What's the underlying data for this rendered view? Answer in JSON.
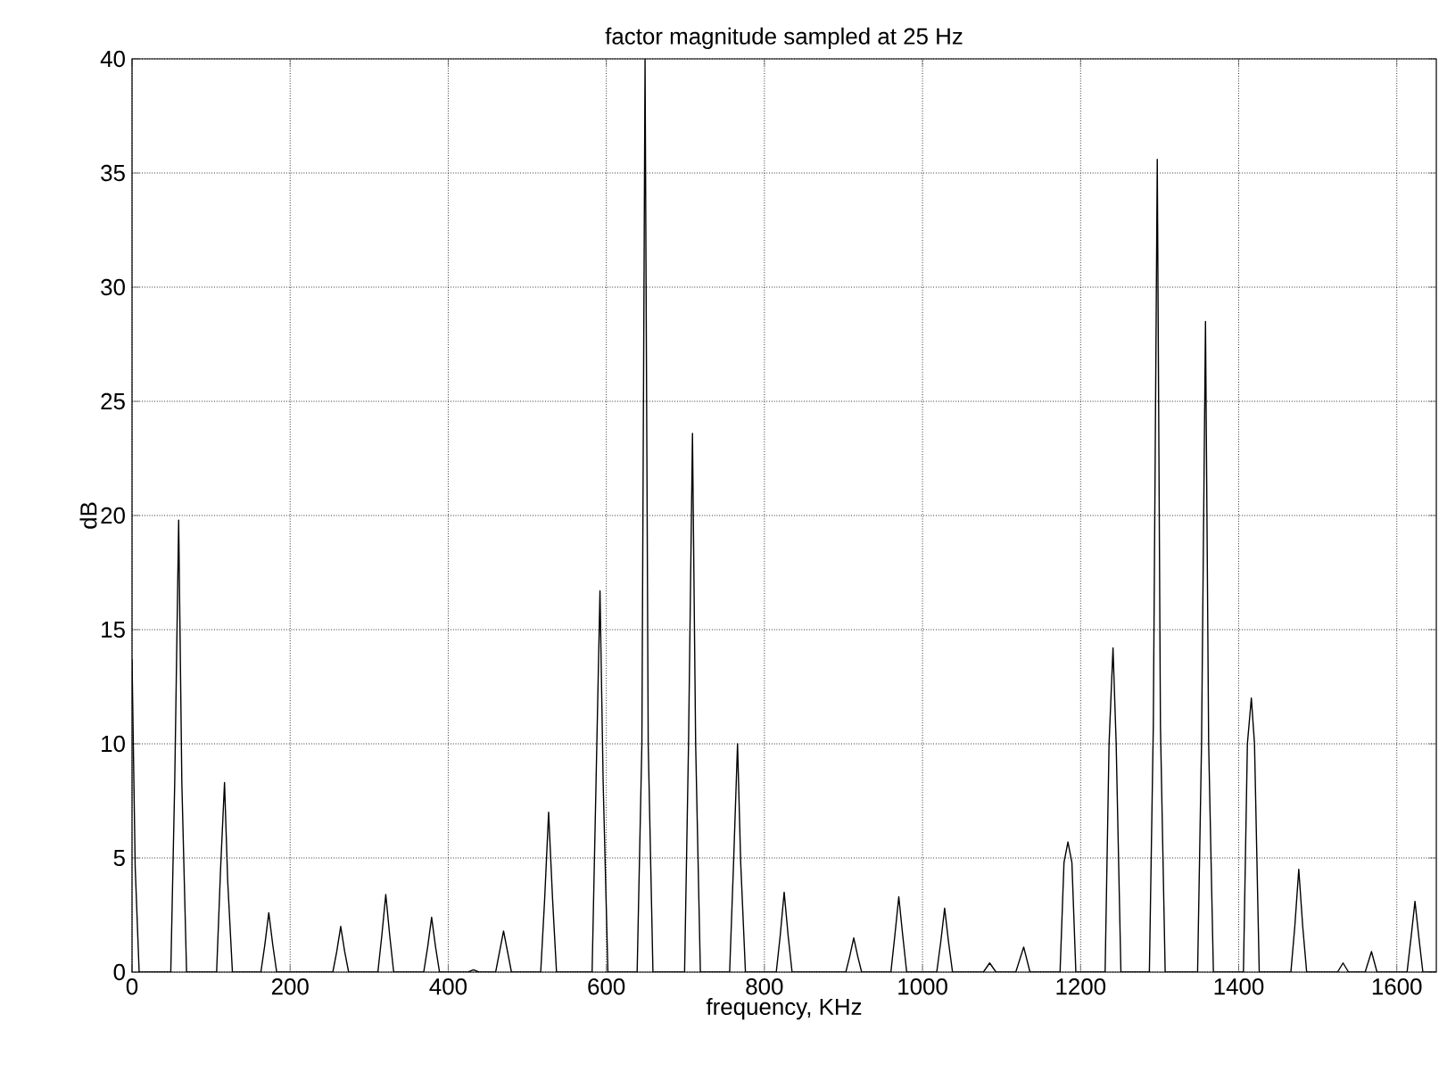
{
  "chart_data": {
    "type": "line",
    "title": "factor magnitude sampled at 25  Hz",
    "xlabel": "frequency, KHz",
    "ylabel": "dB",
    "xlim": [
      0,
      1650
    ],
    "ylim": [
      0,
      40
    ],
    "xticks": [
      0,
      200,
      400,
      600,
      800,
      1000,
      1200,
      1400,
      1600
    ],
    "yticks": [
      0,
      5,
      10,
      15,
      20,
      25,
      30,
      35,
      40
    ],
    "grid": true,
    "marker": "none",
    "line_style": "solid",
    "series": [
      {
        "color": "#000000",
        "x": [
          0,
          4,
          9,
          49,
          54,
          59,
          63,
          69,
          107,
          112,
          117,
          121,
          127,
          163,
          168,
          173,
          178,
          183,
          254,
          259,
          264,
          269,
          274,
          311,
          316,
          321,
          326,
          331,
          369,
          374,
          379,
          384,
          389,
          425,
          432,
          439,
          460,
          465,
          470,
          475,
          480,
          517,
          522,
          527,
          532,
          537,
          582,
          587,
          592,
          596,
          602,
          639,
          645,
          649,
          653,
          659,
          699,
          704,
          709,
          713,
          719,
          756,
          761,
          766,
          770,
          776,
          815,
          820,
          825,
          830,
          835,
          903,
          908,
          913,
          918,
          923,
          960,
          965,
          970,
          975,
          980,
          1018,
          1023,
          1028,
          1033,
          1038,
          1077,
          1085,
          1093,
          1118,
          1128,
          1136,
          1174,
          1179,
          1184,
          1189,
          1194,
          1231,
          1236,
          1241,
          1245,
          1251,
          1287,
          1292,
          1297,
          1301,
          1307,
          1348,
          1353,
          1358,
          1362,
          1368,
          1406,
          1411,
          1416,
          1420,
          1426,
          1466,
          1471,
          1476,
          1481,
          1486,
          1525,
          1532,
          1539,
          1560,
          1568,
          1575,
          1613,
          1618,
          1623,
          1628,
          1633,
          1650
        ],
        "values": [
          13.7,
          4.6,
          0,
          0,
          8.3,
          19.8,
          8.3,
          0,
          0,
          4.5,
          8.3,
          4.0,
          0,
          0,
          1.2,
          2.6,
          1.2,
          0,
          0,
          0.9,
          2.0,
          0.9,
          0,
          0,
          1.6,
          3.4,
          1.6,
          0,
          0,
          1.1,
          2.4,
          1.1,
          0,
          0,
          0.1,
          0,
          0,
          0.9,
          1.8,
          0.9,
          0,
          0,
          3.2,
          7.0,
          3.2,
          0,
          0,
          8.3,
          16.7,
          8.3,
          0,
          0,
          10.0,
          40.0,
          10.0,
          0,
          0,
          10.0,
          23.6,
          10.0,
          0,
          0,
          4.8,
          10.0,
          4.8,
          0,
          0,
          1.6,
          3.5,
          1.6,
          0,
          0,
          0.7,
          1.5,
          0.7,
          0,
          0,
          1.6,
          3.3,
          1.6,
          0,
          0,
          1.3,
          2.8,
          1.3,
          0,
          0,
          0.4,
          0,
          0,
          1.1,
          0,
          0,
          4.8,
          5.7,
          4.8,
          0,
          0,
          10.0,
          14.2,
          10.0,
          0,
          0,
          10.8,
          35.6,
          10.8,
          0,
          0,
          10.0,
          28.5,
          10.0,
          0,
          0,
          10.0,
          12.0,
          10.0,
          0,
          0,
          2.0,
          4.5,
          2.0,
          0,
          0,
          0.4,
          0,
          0,
          0.9,
          0,
          0,
          1.5,
          3.1,
          1.5,
          0,
          0
        ]
      }
    ]
  }
}
